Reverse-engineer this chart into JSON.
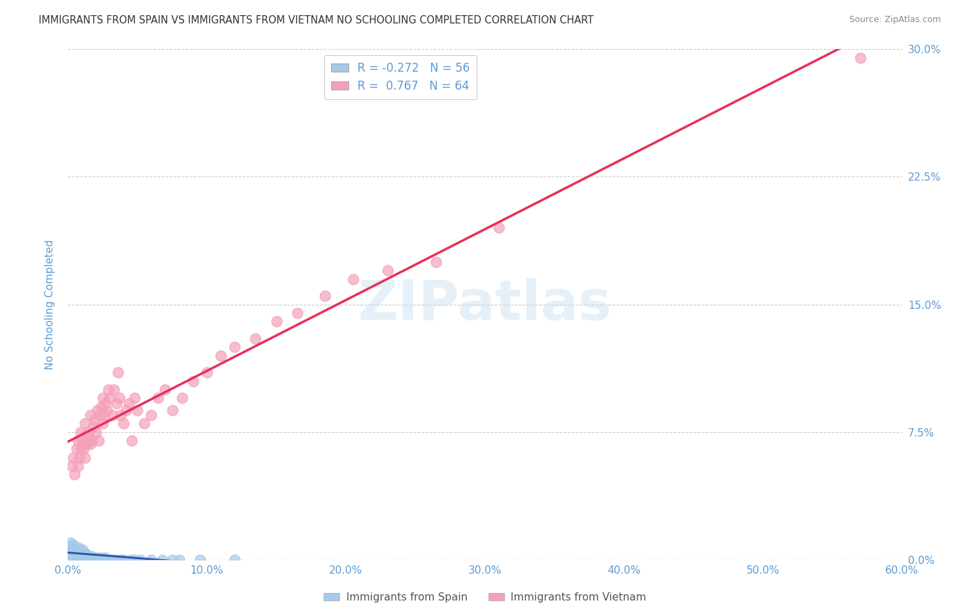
{
  "title": "IMMIGRANTS FROM SPAIN VS IMMIGRANTS FROM VIETNAM NO SCHOOLING COMPLETED CORRELATION CHART",
  "source": "Source: ZipAtlas.com",
  "ylabel": "No Schooling Completed",
  "xlim": [
    0.0,
    0.6
  ],
  "ylim": [
    0.0,
    0.3
  ],
  "xticks": [
    0.0,
    0.1,
    0.2,
    0.3,
    0.4,
    0.5,
    0.6
  ],
  "xtick_labels": [
    "0.0%",
    "10.0%",
    "20.0%",
    "30.0%",
    "40.0%",
    "50.0%",
    "60.0%"
  ],
  "yticks": [
    0.0,
    0.075,
    0.15,
    0.225,
    0.3
  ],
  "ytick_labels": [
    "0.0%",
    "7.5%",
    "15.0%",
    "22.5%",
    "30.0%"
  ],
  "spain_R": -0.272,
  "spain_N": 56,
  "vietnam_R": 0.767,
  "vietnam_N": 64,
  "spain_color": "#a8c8e8",
  "vietnam_color": "#f4a0b8",
  "spain_line_color": "#2255aa",
  "vietnam_line_color": "#e8305a",
  "background_color": "#ffffff",
  "grid_color": "#cccccc",
  "axis_label_color": "#5b9bd5",
  "tick_label_color": "#5b9bd5",
  "watermark_text": "ZIPatlas",
  "spain_scatter_x": [
    0.001,
    0.001,
    0.002,
    0.002,
    0.002,
    0.003,
    0.003,
    0.003,
    0.004,
    0.004,
    0.004,
    0.005,
    0.005,
    0.005,
    0.006,
    0.006,
    0.007,
    0.007,
    0.007,
    0.008,
    0.008,
    0.009,
    0.009,
    0.01,
    0.01,
    0.01,
    0.011,
    0.011,
    0.012,
    0.012,
    0.013,
    0.013,
    0.014,
    0.015,
    0.016,
    0.017,
    0.018,
    0.019,
    0.02,
    0.022,
    0.025,
    0.027,
    0.03,
    0.032,
    0.035,
    0.038,
    0.04,
    0.045,
    0.048,
    0.052,
    0.06,
    0.068,
    0.075,
    0.08,
    0.095,
    0.12
  ],
  "spain_scatter_y": [
    0.005,
    0.008,
    0.003,
    0.005,
    0.01,
    0.002,
    0.005,
    0.008,
    0.003,
    0.006,
    0.009,
    0.002,
    0.004,
    0.007,
    0.003,
    0.006,
    0.002,
    0.004,
    0.007,
    0.003,
    0.005,
    0.002,
    0.005,
    0.001,
    0.003,
    0.006,
    0.002,
    0.004,
    0.002,
    0.004,
    0.001,
    0.003,
    0.002,
    0.002,
    0.001,
    0.002,
    0.001,
    0.001,
    0.001,
    0.001,
    0.001,
    0.001,
    0.0,
    0.0,
    0.0,
    0.0,
    0.0,
    0.0,
    0.0,
    0.0,
    0.0,
    0.0,
    0.0,
    0.0,
    0.0,
    0.0
  ],
  "vietnam_scatter_x": [
    0.003,
    0.004,
    0.005,
    0.006,
    0.007,
    0.007,
    0.008,
    0.009,
    0.009,
    0.01,
    0.011,
    0.012,
    0.012,
    0.013,
    0.014,
    0.015,
    0.016,
    0.016,
    0.017,
    0.018,
    0.019,
    0.02,
    0.021,
    0.022,
    0.023,
    0.024,
    0.025,
    0.025,
    0.026,
    0.027,
    0.028,
    0.029,
    0.03,
    0.032,
    0.033,
    0.035,
    0.036,
    0.037,
    0.038,
    0.04,
    0.042,
    0.044,
    0.046,
    0.048,
    0.05,
    0.055,
    0.06,
    0.065,
    0.07,
    0.075,
    0.082,
    0.09,
    0.1,
    0.11,
    0.12,
    0.135,
    0.15,
    0.165,
    0.185,
    0.205,
    0.23,
    0.265,
    0.31,
    0.57
  ],
  "vietnam_scatter_y": [
    0.055,
    0.06,
    0.05,
    0.065,
    0.055,
    0.07,
    0.06,
    0.065,
    0.075,
    0.07,
    0.065,
    0.06,
    0.08,
    0.068,
    0.075,
    0.072,
    0.068,
    0.085,
    0.07,
    0.078,
    0.082,
    0.075,
    0.088,
    0.07,
    0.085,
    0.09,
    0.08,
    0.095,
    0.085,
    0.092,
    0.088,
    0.1,
    0.095,
    0.085,
    0.1,
    0.092,
    0.11,
    0.095,
    0.085,
    0.08,
    0.088,
    0.092,
    0.07,
    0.095,
    0.088,
    0.08,
    0.085,
    0.095,
    0.1,
    0.088,
    0.095,
    0.105,
    0.11,
    0.12,
    0.125,
    0.13,
    0.14,
    0.145,
    0.155,
    0.165,
    0.17,
    0.175,
    0.195,
    0.295
  ]
}
